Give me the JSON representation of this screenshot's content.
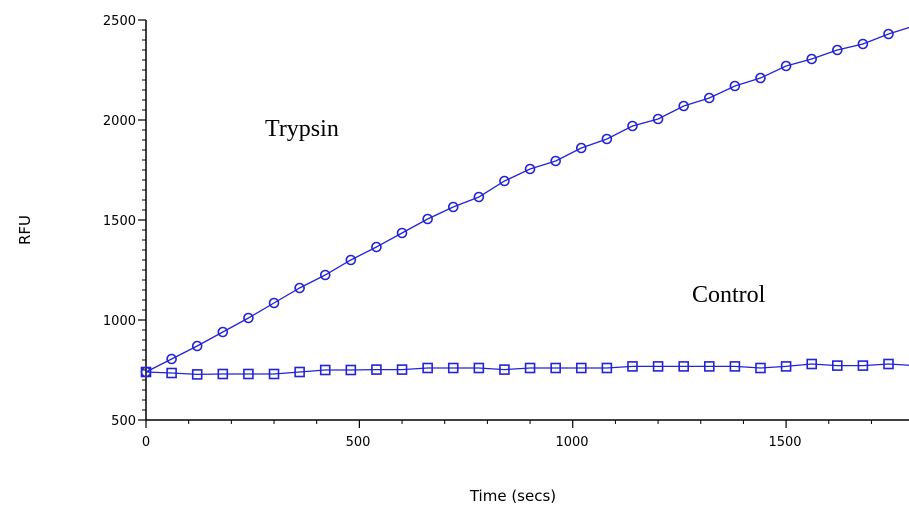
{
  "chart_data": {
    "type": "line",
    "xlabel": "Time (secs)",
    "ylabel": "RFU",
    "xlim": [
      0,
      1800
    ],
    "ylim": [
      500,
      2500
    ],
    "x_ticks": [
      "0",
      "500",
      "1000",
      "1500"
    ],
    "y_ticks": [
      "500",
      "1000",
      "1500",
      "2000",
      "2500"
    ],
    "grid": false,
    "annotations": [
      "Trypsin",
      "Control"
    ],
    "colors": {
      "series": "#2323d8",
      "axis": "#000000"
    },
    "x": [
      0,
      60,
      120,
      180,
      240,
      300,
      360,
      420,
      480,
      540,
      600,
      660,
      720,
      780,
      840,
      900,
      960,
      1020,
      1080,
      1140,
      1200,
      1260,
      1320,
      1380,
      1440,
      1500,
      1560,
      1620,
      1680,
      1740,
      1800
    ],
    "series": [
      {
        "marker": "circle",
        "values": [
          740,
          805,
          870,
          940,
          1010,
          1085,
          1160,
          1225,
          1300,
          1365,
          1435,
          1505,
          1565,
          1615,
          1695,
          1755,
          1795,
          1860,
          1905,
          1970,
          2005,
          2070,
          2110,
          2170,
          2210,
          2270,
          2305,
          2350,
          2380,
          2430,
          2470
        ]
      },
      {
        "marker": "square",
        "values": [
          740,
          735,
          728,
          730,
          730,
          730,
          740,
          750,
          750,
          752,
          752,
          760,
          760,
          760,
          752,
          760,
          760,
          760,
          760,
          768,
          768,
          768,
          768,
          768,
          760,
          768,
          780,
          772,
          772,
          780,
          772
        ]
      }
    ]
  }
}
